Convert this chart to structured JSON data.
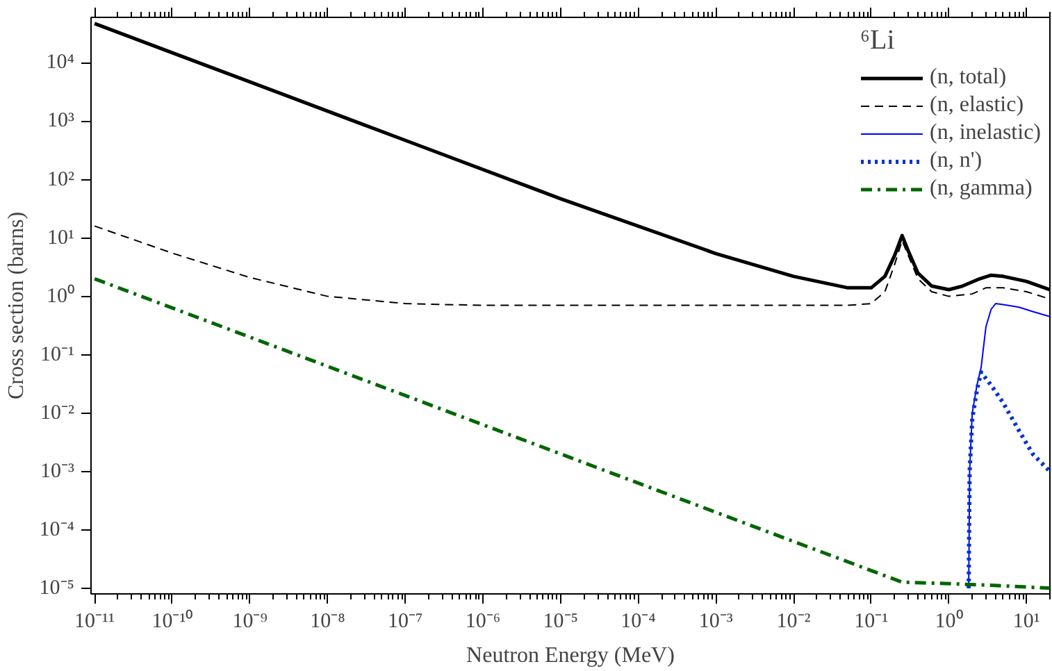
{
  "chart_data": {
    "type": "line",
    "xlabel": "Neutron Energy (MeV)",
    "ylabel": "Cross section (barns)",
    "legend_title": "⁶Li",
    "log": "xy",
    "grid": false,
    "legend": "top right",
    "xlim": [
      9e-12,
      20
    ],
    "ylim": [
      8e-06,
      60000
    ],
    "xticks": [
      {
        "value": 1e-11,
        "label": "10⁻¹¹"
      },
      {
        "value": 1e-10,
        "label": "10⁻¹⁰"
      },
      {
        "value": 1e-09,
        "label": "10⁻⁹"
      },
      {
        "value": 1e-08,
        "label": "10⁻⁸"
      },
      {
        "value": 1e-07,
        "label": "10⁻⁷"
      },
      {
        "value": 1e-06,
        "label": "10⁻⁶"
      },
      {
        "value": 1e-05,
        "label": "10⁻⁵"
      },
      {
        "value": 0.0001,
        "label": "10⁻⁴"
      },
      {
        "value": 0.001,
        "label": "10⁻³"
      },
      {
        "value": 0.01,
        "label": "10⁻²"
      },
      {
        "value": 0.1,
        "label": "10⁻¹"
      },
      {
        "value": 1,
        "label": "10⁰"
      },
      {
        "value": 10,
        "label": "10¹"
      }
    ],
    "yticks": [
      {
        "value": 1e-05,
        "label": "10⁻⁵"
      },
      {
        "value": 0.0001,
        "label": "10⁻⁴"
      },
      {
        "value": 0.001,
        "label": "10⁻³"
      },
      {
        "value": 0.01,
        "label": "10⁻²"
      },
      {
        "value": 0.1,
        "label": "10⁻¹"
      },
      {
        "value": 1,
        "label": "10⁰"
      },
      {
        "value": 10,
        "label": "10¹"
      },
      {
        "value": 100,
        "label": "10²"
      },
      {
        "value": 1000,
        "label": "10³"
      },
      {
        "value": 10000,
        "label": "10⁴"
      }
    ],
    "series": [
      {
        "name": "(n, total)",
        "color": "#000000",
        "line_style": "solid",
        "x": [
          1e-11,
          1e-09,
          1e-07,
          1e-05,
          0.001,
          0.01,
          0.05,
          0.1,
          0.15,
          0.2,
          0.25,
          0.3,
          0.4,
          0.6,
          1,
          1.5,
          2.5,
          3.5,
          5,
          10,
          20
        ],
        "values": [
          47000,
          4700,
          470,
          47,
          5.4,
          2.2,
          1.4,
          1.4,
          2.2,
          5,
          11,
          6,
          2.5,
          1.5,
          1.3,
          1.5,
          2.0,
          2.3,
          2.2,
          1.8,
          1.3
        ]
      },
      {
        "name": "(n, elastic)",
        "color": "#000000",
        "line_style": "dashed",
        "x": [
          1e-11,
          1e-10,
          1e-09,
          1e-08,
          1e-07,
          1e-06,
          0.001,
          0.05,
          0.1,
          0.15,
          0.2,
          0.25,
          0.3,
          0.4,
          0.6,
          1,
          2,
          3,
          5,
          10,
          20
        ],
        "values": [
          16,
          5.5,
          2.1,
          1.0,
          0.75,
          0.7,
          0.7,
          0.7,
          0.75,
          1.2,
          3.5,
          9,
          5,
          2,
          1.2,
          1.0,
          1.1,
          1.4,
          1.4,
          1.2,
          0.9
        ]
      },
      {
        "name": "(n, inelastic)",
        "color": "#0000ff",
        "line_style": "solid",
        "x": [
          1.8,
          1.85,
          2.0,
          2.3,
          2.6,
          3.0,
          3.5,
          4,
          5,
          8,
          12,
          20
        ],
        "values": [
          1e-05,
          0.001,
          0.01,
          0.03,
          0.06,
          0.3,
          0.6,
          0.75,
          0.72,
          0.65,
          0.55,
          0.45
        ]
      },
      {
        "name": "(n, n')",
        "color": "#0033cc",
        "line_style": "dotted",
        "x": [
          1.8,
          1.85,
          2.0,
          2.3,
          2.6,
          3.5,
          5,
          8,
          12,
          20
        ],
        "values": [
          1e-05,
          0.001,
          0.008,
          0.025,
          0.05,
          0.03,
          0.015,
          0.005,
          0.002,
          0.001
        ]
      },
      {
        "name": "(n, gamma)",
        "color": "#006600",
        "line_style": "dashdot",
        "x": [
          1e-11,
          1e-07,
          0.001,
          0.25,
          1,
          5,
          20
        ],
        "values": [
          2,
          0.02,
          0.0002,
          1.27e-05,
          1.2e-05,
          1.1e-05,
          1e-05
        ]
      }
    ]
  }
}
